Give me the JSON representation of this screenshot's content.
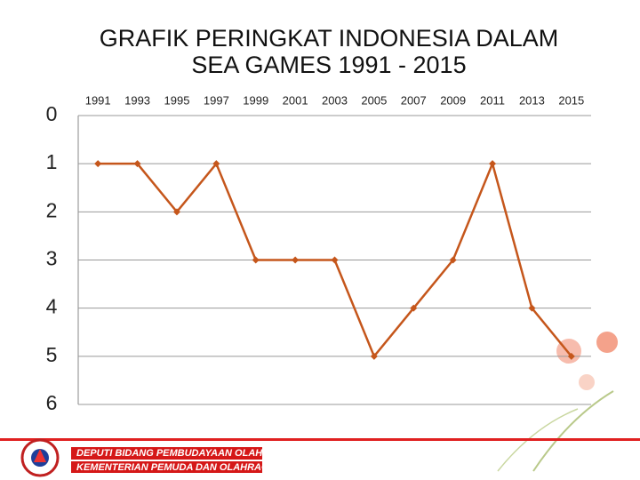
{
  "chart_data": {
    "type": "line",
    "title": "GRAFIK PERINGKAT INDONESIA DALAM SEA GAMES 1991 - 2015",
    "categories": [
      "1991",
      "1993",
      "1995",
      "1997",
      "1999",
      "2001",
      "2003",
      "2005",
      "2007",
      "2009",
      "2011",
      "2013",
      "2015"
    ],
    "values": [
      1,
      1,
      2,
      1,
      3,
      3,
      3,
      5,
      4,
      3,
      1,
      4,
      5
    ],
    "color": "#c5561b",
    "ylim": [
      0,
      6
    ],
    "yticks": [
      0,
      1,
      2,
      3,
      4,
      5,
      6
    ],
    "y_inverted": true,
    "grid": true,
    "x_axis_position": "top"
  },
  "footer": {
    "line1": "DEPUTI BIDANG PEMBUDAYAAN OLAHRAGA",
    "line2": "KEMENTERIAN PEMUDA DAN OLAHRAGA"
  }
}
